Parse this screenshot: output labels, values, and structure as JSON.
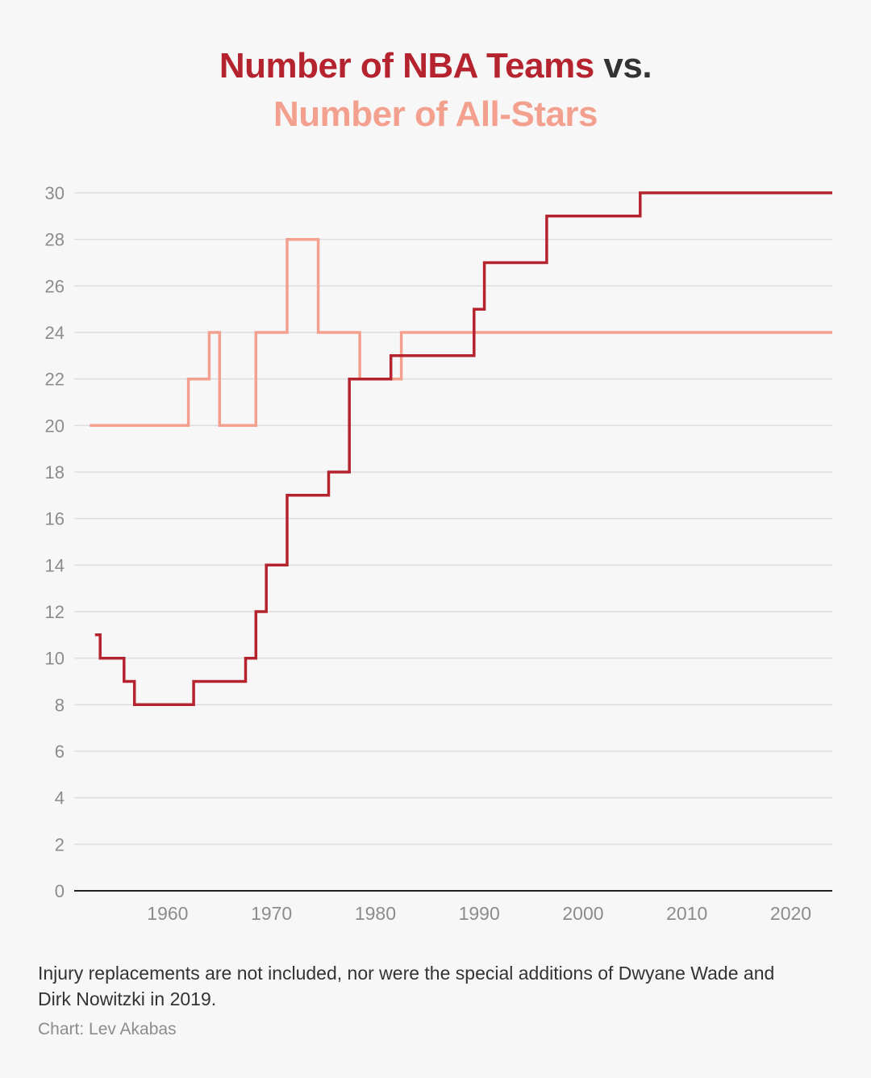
{
  "title": {
    "part1": "Number of NBA Teams",
    "part2": " vs.",
    "part3": "Number of All-Stars"
  },
  "colors": {
    "teams": "#b5232f",
    "allstars": "#f4a08f",
    "grid": "#dddddd",
    "axis": "#222222",
    "tick_text": "#8c8c8c"
  },
  "chart_data": {
    "type": "line",
    "step": true,
    "title": "Number of NBA Teams vs. Number of All-Stars",
    "xlabel": "",
    "ylabel": "",
    "xlim": [
      1951,
      2024
    ],
    "ylim": [
      0,
      30
    ],
    "grid": true,
    "x_ticks": [
      "1960",
      "1970",
      "1980",
      "1990",
      "2000",
      "2010",
      "2020"
    ],
    "y_ticks": [
      "0",
      "2",
      "4",
      "6",
      "8",
      "10",
      "12",
      "14",
      "16",
      "18",
      "20",
      "22",
      "24",
      "26",
      "28",
      "30"
    ],
    "series": [
      {
        "name": "Number of NBA Teams",
        "color": "#b5232f",
        "points": [
          [
            1953,
            11
          ],
          [
            1953.5,
            10
          ],
          [
            1955.8,
            9
          ],
          [
            1956.8,
            8
          ],
          [
            1962.5,
            9
          ],
          [
            1967.5,
            10
          ],
          [
            1968.5,
            12
          ],
          [
            1969.5,
            14
          ],
          [
            1971.5,
            17
          ],
          [
            1975.5,
            18
          ],
          [
            1977.5,
            22
          ],
          [
            1981.5,
            23
          ],
          [
            1989.5,
            25
          ],
          [
            1990.5,
            27
          ],
          [
            1996.5,
            29
          ],
          [
            2005.5,
            30
          ],
          [
            2024,
            30
          ]
        ]
      },
      {
        "name": "Number of All-Stars",
        "color": "#f4a08f",
        "points": [
          [
            1952.5,
            20
          ],
          [
            1962,
            22
          ],
          [
            1964,
            24
          ],
          [
            1965,
            20
          ],
          [
            1968.5,
            24
          ],
          [
            1971.5,
            28
          ],
          [
            1974.5,
            24
          ],
          [
            1978.5,
            22
          ],
          [
            1982.5,
            24
          ],
          [
            2024,
            24
          ]
        ]
      }
    ]
  },
  "footnote": "Injury replacements are not included, nor were the special additions of Dwyane Wade and Dirk Nowitzki in 2019.",
  "credit": "Chart: Lev Akabas"
}
